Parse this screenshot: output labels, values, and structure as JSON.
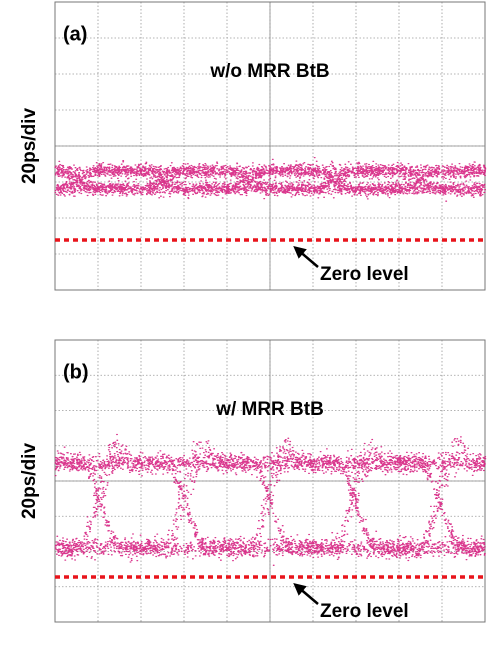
{
  "panels": [
    {
      "label": "(a)",
      "title": "w/o MRR BtB",
      "ylabel": "20ps/div",
      "annotation": "Zero level"
    },
    {
      "label": "(b)",
      "title": "w/ MRR BtB",
      "ylabel": "20ps/div",
      "annotation": "Zero level"
    }
  ]
}
